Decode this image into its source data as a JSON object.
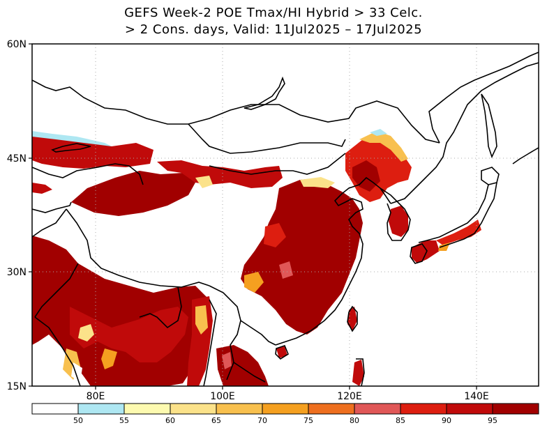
{
  "title": {
    "line1": "GEFS Week-2 POE Tmax/HI Hybrid > 33 Celc.",
    "line2": "> 2 Cons. days, Valid: 11Jul2025 – 17Jul2025"
  },
  "map": {
    "lat_labels": [
      "60N",
      "45N",
      "30N",
      "15N"
    ],
    "lon_labels": [
      "80E",
      "100E",
      "120E",
      "140E"
    ],
    "grid": "dotted"
  },
  "colorbar": {
    "colors": [
      "#ffffff",
      "#aee7f2",
      "#fdfab0",
      "#fbe28a",
      "#f8c04e",
      "#f5a020",
      "#ee6f1f",
      "#e05757",
      "#dd1e10",
      "#c00a0a",
      "#a10000"
    ],
    "labels": [
      "50",
      "55",
      "60",
      "65",
      "70",
      "75",
      "80",
      "85",
      "90",
      "95"
    ]
  }
}
